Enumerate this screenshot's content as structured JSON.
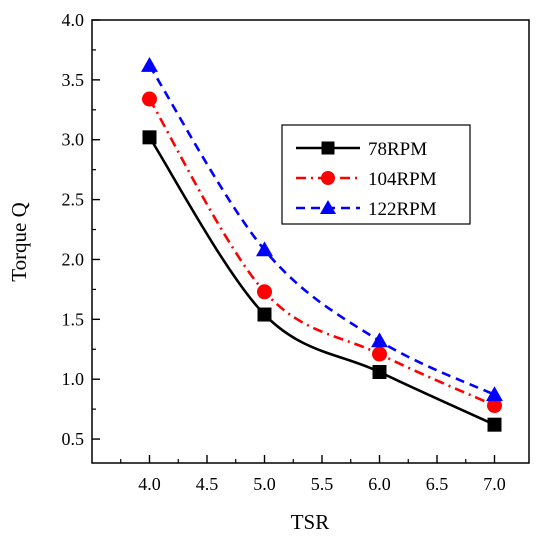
{
  "chart_data": {
    "type": "line",
    "xlabel": "TSR",
    "ylabel": "Torque Q",
    "xlim": [
      3.5,
      7.3
    ],
    "ylim": [
      0.3,
      4.0
    ],
    "x_ticks": [
      "4.0",
      "4.5",
      "5.0",
      "5.5",
      "6.0",
      "6.5",
      "7.0"
    ],
    "y_ticks": [
      "0.5",
      "1.0",
      "1.5",
      "2.0",
      "2.5",
      "3.0",
      "3.5",
      "4.0"
    ],
    "grid": false,
    "legend_position": "upper-right",
    "x": [
      4.0,
      5.0,
      6.0,
      7.0
    ],
    "series": [
      {
        "name": "78RPM",
        "values": [
          3.02,
          1.54,
          1.06,
          0.62
        ],
        "color": "#000000",
        "marker": "square",
        "line_style": "solid"
      },
      {
        "name": "104RPM",
        "values": [
          3.34,
          1.73,
          1.21,
          0.78
        ],
        "color": "#ff0000",
        "marker": "circle",
        "line_style": "dash-dot"
      },
      {
        "name": "122RPM",
        "values": [
          3.62,
          2.08,
          1.32,
          0.87
        ],
        "color": "#0000ff",
        "marker": "triangle",
        "line_style": "dashed"
      }
    ]
  }
}
